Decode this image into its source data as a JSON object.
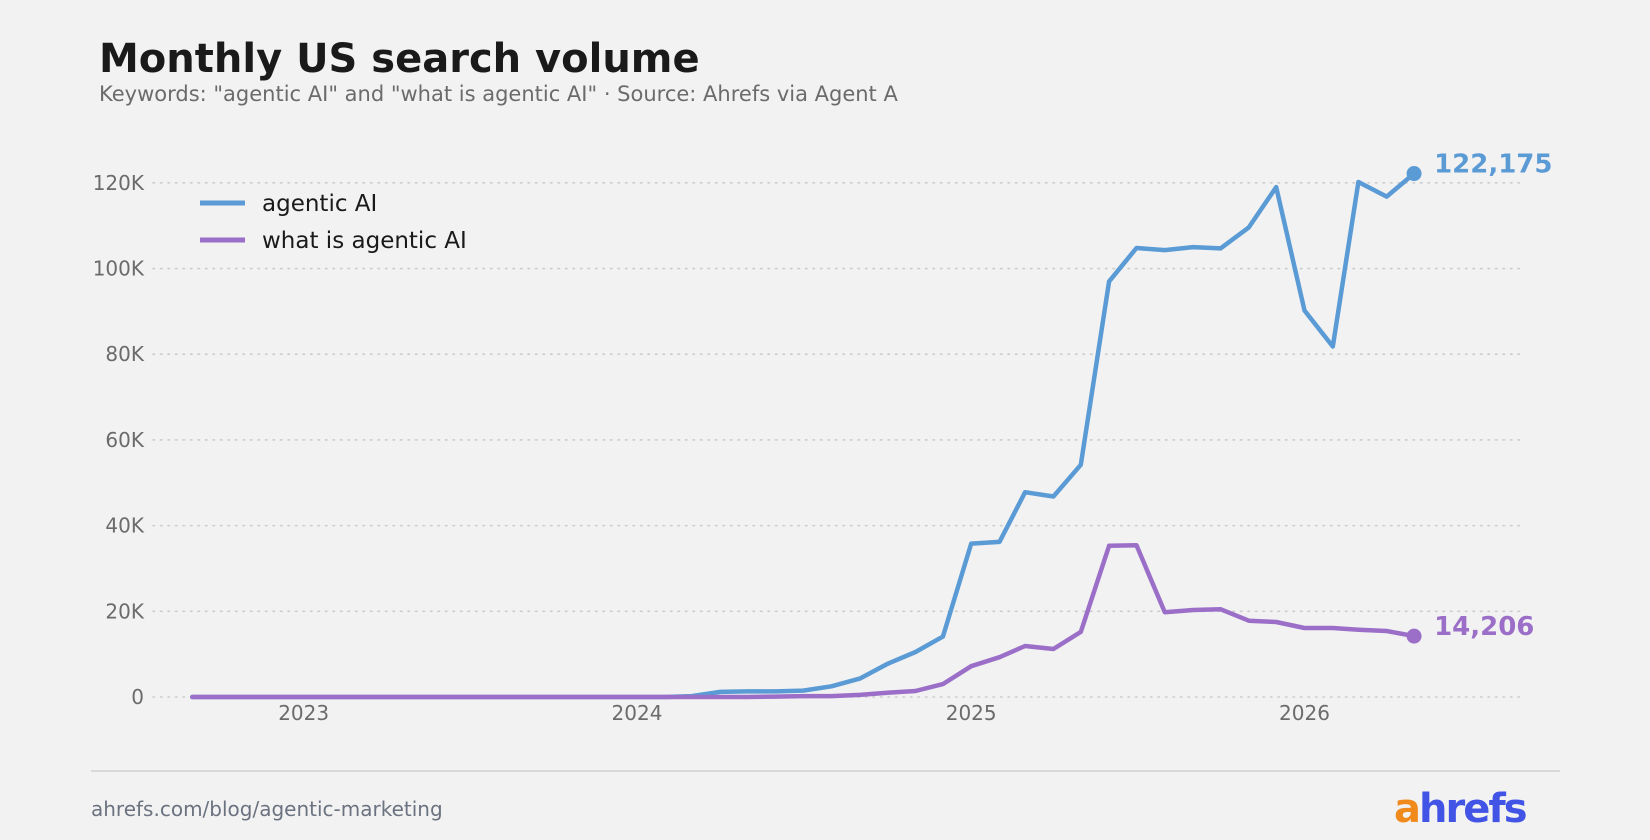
{
  "header": {
    "title": "Monthly US search volume",
    "subtitle": "Keywords: \"agentic AI\" and \"what is agentic AI\"  ·  Source: Ahrefs via Agent A"
  },
  "footer": {
    "url": "ahrefs.com/blog/agentic-marketing",
    "logo_first": "a",
    "logo_rest": "hrefs"
  },
  "chart_data": {
    "type": "line",
    "title": "Monthly US search volume",
    "xlabel": "",
    "ylabel": "",
    "ylim": [
      0,
      130000
    ],
    "xlim": [
      "2022-07-20",
      "2026-08-25"
    ],
    "grid": "horizontal dotted",
    "legend_position": "top-left",
    "y_ticks": [
      {
        "value": 0,
        "label": "0"
      },
      {
        "value": 20000,
        "label": "20K"
      },
      {
        "value": 40000,
        "label": "40K"
      },
      {
        "value": 60000,
        "label": "60K"
      },
      {
        "value": 80000,
        "label": "80K"
      },
      {
        "value": 100000,
        "label": "100K"
      },
      {
        "value": 120000,
        "label": "120K"
      }
    ],
    "x_ticks": [
      {
        "value": "2023-01-01",
        "label": "2023"
      },
      {
        "value": "2024-01-01",
        "label": "2024"
      },
      {
        "value": "2025-01-01",
        "label": "2025"
      },
      {
        "value": "2026-01-01",
        "label": "2026"
      }
    ],
    "x": [
      "2022-09",
      "2022-10",
      "2022-11",
      "2022-12",
      "2023-01",
      "2023-02",
      "2023-03",
      "2023-04",
      "2023-05",
      "2023-06",
      "2023-07",
      "2023-08",
      "2023-09",
      "2023-10",
      "2023-11",
      "2023-12",
      "2024-01",
      "2024-02",
      "2024-03",
      "2024-04",
      "2024-05",
      "2024-06",
      "2024-07",
      "2024-08",
      "2024-09",
      "2024-10",
      "2024-11",
      "2024-12",
      "2025-01",
      "2025-02",
      "2025-03",
      "2025-04",
      "2025-05",
      "2025-06",
      "2025-07",
      "2025-08",
      "2025-09",
      "2025-10",
      "2025-11",
      "2025-12",
      "2026-01",
      "2026-02",
      "2026-03",
      "2026-04",
      "2026-05"
    ],
    "series": [
      {
        "name": "agentic AI",
        "color": "#5b9bd5",
        "end_label": "122,175",
        "values": [
          0,
          0,
          0,
          0,
          0,
          0,
          0,
          0,
          0,
          0,
          0,
          0,
          0,
          0,
          0,
          0,
          0,
          0,
          200,
          1200,
          1300,
          1300,
          1500,
          2500,
          4300,
          7700,
          10500,
          14100,
          35800,
          36200,
          47800,
          46800,
          54200,
          97000,
          104800,
          104300,
          105000,
          104700,
          109600,
          119000,
          90200,
          81800,
          120200,
          116800,
          122175
        ]
      },
      {
        "name": "what is agentic AI",
        "color": "#9b6fc8",
        "end_label": "14,206",
        "values": [
          0,
          0,
          0,
          0,
          0,
          0,
          0,
          0,
          0,
          0,
          0,
          0,
          0,
          0,
          0,
          0,
          0,
          0,
          0,
          0,
          0,
          100,
          200,
          200,
          500,
          1000,
          1400,
          3000,
          7200,
          9300,
          11900,
          11200,
          15200,
          35300,
          35400,
          19800,
          20300,
          20500,
          17800,
          17500,
          16100,
          16100,
          15700,
          15400,
          14206
        ]
      }
    ]
  }
}
